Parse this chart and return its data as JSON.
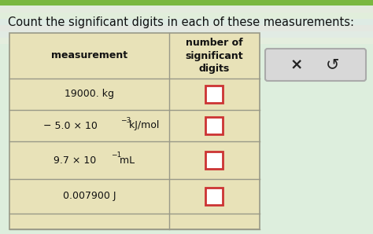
{
  "title": "Count the significant digits in each of these measurements:",
  "title_fontsize": 10.5,
  "col1_header": "measurement",
  "col2_header": "number of\nsignificant\ndigits",
  "row_labels": [
    "19000. kg",
    "5.0 × 10   kJ/mol",
    "9.7 × 10   mL",
    "0.007900 J"
  ],
  "row_prefixes": [
    null,
    "− ",
    null,
    null
  ],
  "superscripts": [
    null,
    "−3",
    "−1",
    null
  ],
  "bg_color_top": "#c8dfc0",
  "bg_color": "#ddeedd",
  "table_bg": "#e8e2b8",
  "grid_color": "#999988",
  "box_color": "#cc3333",
  "box_bg": "#ffffff",
  "button_bg": "#d8d8d8",
  "button_border": "#aaaaaa",
  "top_stripe_color": "#7ab840",
  "title_color": "#111111",
  "header_text_color": "#111111",
  "row_text_color": "#111111"
}
